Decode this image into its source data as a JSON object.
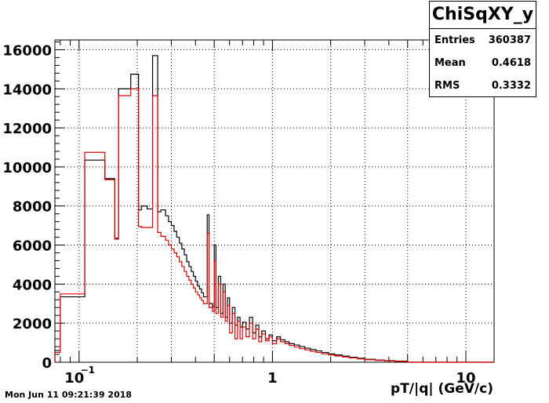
{
  "chart_data": {
    "type": "histogram",
    "title": "",
    "xlabel": "pT/|q| (GeV/c)",
    "ylabel": "",
    "x_scale": "log",
    "xlim": [
      0.075,
      14
    ],
    "ylim": [
      0,
      16500
    ],
    "grid": true,
    "x_ticks": [
      {
        "value": 0.1,
        "label": "10",
        "exponent": "−1"
      },
      {
        "value": 1,
        "label": "1",
        "exponent": ""
      },
      {
        "value": 10,
        "label": "10",
        "exponent": ""
      }
    ],
    "y_ticks": [
      0,
      2000,
      4000,
      6000,
      8000,
      10000,
      12000,
      14000,
      16000
    ],
    "series": [
      {
        "color": "#000000",
        "bins": [
          [
            0.075,
            0.08,
            600
          ],
          [
            0.08,
            0.107,
            3350
          ],
          [
            0.107,
            0.136,
            10350
          ],
          [
            0.136,
            0.153,
            9400
          ],
          [
            0.153,
            0.16,
            6350
          ],
          [
            0.16,
            0.185,
            14000
          ],
          [
            0.185,
            0.203,
            14750
          ],
          [
            0.203,
            0.21,
            7800
          ],
          [
            0.21,
            0.225,
            8000
          ],
          [
            0.225,
            0.24,
            7850
          ],
          [
            0.24,
            0.255,
            15700
          ],
          [
            0.255,
            0.265,
            7700
          ],
          [
            0.265,
            0.28,
            7800
          ],
          [
            0.28,
            0.29,
            7500
          ],
          [
            0.29,
            0.3,
            7200
          ],
          [
            0.3,
            0.31,
            7000
          ],
          [
            0.31,
            0.32,
            6700
          ],
          [
            0.32,
            0.33,
            6400
          ],
          [
            0.33,
            0.34,
            6100
          ],
          [
            0.34,
            0.35,
            5800
          ],
          [
            0.35,
            0.36,
            5500
          ],
          [
            0.36,
            0.37,
            5150
          ],
          [
            0.37,
            0.38,
            4900
          ],
          [
            0.38,
            0.39,
            4650
          ],
          [
            0.39,
            0.4,
            4400
          ],
          [
            0.4,
            0.41,
            4150
          ],
          [
            0.41,
            0.42,
            3900
          ],
          [
            0.42,
            0.43,
            3750
          ],
          [
            0.43,
            0.44,
            3550
          ],
          [
            0.44,
            0.46,
            3350
          ],
          [
            0.46,
            0.47,
            7550
          ],
          [
            0.47,
            0.49,
            3000
          ],
          [
            0.49,
            0.5,
            2850
          ],
          [
            0.5,
            0.51,
            6000
          ],
          [
            0.51,
            0.525,
            2800
          ],
          [
            0.525,
            0.54,
            4400
          ],
          [
            0.54,
            0.555,
            2500
          ],
          [
            0.555,
            0.57,
            4000
          ],
          [
            0.57,
            0.585,
            2300
          ],
          [
            0.585,
            0.6,
            3300
          ],
          [
            0.6,
            0.62,
            2000
          ],
          [
            0.62,
            0.64,
            2800
          ],
          [
            0.64,
            0.66,
            1900
          ],
          [
            0.66,
            0.68,
            2300
          ],
          [
            0.68,
            0.7,
            1800
          ],
          [
            0.7,
            0.73,
            2050
          ],
          [
            0.73,
            0.76,
            1700
          ],
          [
            0.76,
            0.79,
            2300
          ],
          [
            0.79,
            0.82,
            1500
          ],
          [
            0.82,
            0.85,
            1900
          ],
          [
            0.85,
            0.88,
            1300
          ],
          [
            0.88,
            0.92,
            1600
          ],
          [
            0.92,
            0.96,
            1200
          ],
          [
            0.96,
            1.0,
            1400
          ],
          [
            1.0,
            1.05,
            1100
          ],
          [
            1.05,
            1.1,
            1300
          ],
          [
            1.1,
            1.16,
            1150
          ],
          [
            1.16,
            1.22,
            1050
          ],
          [
            1.22,
            1.3,
            950
          ],
          [
            1.3,
            1.38,
            880
          ],
          [
            1.38,
            1.47,
            800
          ],
          [
            1.47,
            1.57,
            720
          ],
          [
            1.57,
            1.68,
            650
          ],
          [
            1.68,
            1.8,
            580
          ],
          [
            1.8,
            1.95,
            500
          ],
          [
            1.95,
            2.1,
            430
          ],
          [
            2.1,
            2.3,
            370
          ],
          [
            2.3,
            2.5,
            310
          ],
          [
            2.5,
            2.75,
            250
          ],
          [
            2.75,
            3.0,
            200
          ],
          [
            3.0,
            3.4,
            150
          ],
          [
            3.4,
            3.8,
            110
          ],
          [
            3.8,
            4.3,
            80
          ],
          [
            4.3,
            5.0,
            55
          ],
          [
            5.0,
            14,
            0
          ]
        ]
      },
      {
        "color": "#dd0000",
        "bins": [
          [
            0.075,
            0.08,
            500
          ],
          [
            0.08,
            0.107,
            3500
          ],
          [
            0.107,
            0.136,
            10750
          ],
          [
            0.136,
            0.153,
            9350
          ],
          [
            0.153,
            0.16,
            6300
          ],
          [
            0.16,
            0.185,
            13650
          ],
          [
            0.185,
            0.203,
            14000
          ],
          [
            0.203,
            0.21,
            6950
          ],
          [
            0.21,
            0.225,
            6900
          ],
          [
            0.225,
            0.24,
            6900
          ],
          [
            0.24,
            0.255,
            13650
          ],
          [
            0.255,
            0.265,
            6650
          ],
          [
            0.265,
            0.28,
            6450
          ],
          [
            0.28,
            0.29,
            6250
          ],
          [
            0.29,
            0.3,
            6000
          ],
          [
            0.3,
            0.31,
            5800
          ],
          [
            0.31,
            0.32,
            5600
          ],
          [
            0.32,
            0.33,
            5400
          ],
          [
            0.33,
            0.34,
            5150
          ],
          [
            0.34,
            0.35,
            4900
          ],
          [
            0.35,
            0.36,
            4650
          ],
          [
            0.36,
            0.37,
            4400
          ],
          [
            0.37,
            0.38,
            4200
          ],
          [
            0.38,
            0.39,
            4000
          ],
          [
            0.39,
            0.4,
            3800
          ],
          [
            0.4,
            0.41,
            3600
          ],
          [
            0.41,
            0.42,
            3450
          ],
          [
            0.42,
            0.43,
            3300
          ],
          [
            0.43,
            0.44,
            3150
          ],
          [
            0.44,
            0.46,
            3000
          ],
          [
            0.46,
            0.47,
            6600
          ],
          [
            0.47,
            0.49,
            2800
          ],
          [
            0.49,
            0.5,
            2600
          ],
          [
            0.5,
            0.51,
            5200
          ],
          [
            0.51,
            0.525,
            2500
          ],
          [
            0.525,
            0.54,
            4000
          ],
          [
            0.54,
            0.555,
            2300
          ],
          [
            0.555,
            0.57,
            3600
          ],
          [
            0.57,
            0.585,
            2100
          ],
          [
            0.585,
            0.6,
            2900
          ],
          [
            0.6,
            0.62,
            1500
          ],
          [
            0.62,
            0.64,
            2500
          ],
          [
            0.64,
            0.66,
            1200
          ],
          [
            0.66,
            0.68,
            2100
          ],
          [
            0.68,
            0.7,
            1200
          ],
          [
            0.7,
            0.73,
            1800
          ],
          [
            0.73,
            0.76,
            1300
          ],
          [
            0.76,
            0.79,
            2000
          ],
          [
            0.79,
            0.82,
            1200
          ],
          [
            0.82,
            0.85,
            1700
          ],
          [
            0.85,
            0.88,
            1050
          ],
          [
            0.88,
            0.92,
            1450
          ],
          [
            0.92,
            0.96,
            1100
          ],
          [
            0.96,
            1.0,
            1300
          ],
          [
            1.0,
            1.05,
            950
          ],
          [
            1.05,
            1.1,
            1200
          ],
          [
            1.1,
            1.16,
            1050
          ],
          [
            1.16,
            1.22,
            950
          ],
          [
            1.22,
            1.3,
            860
          ],
          [
            1.3,
            1.38,
            780
          ],
          [
            1.38,
            1.47,
            700
          ],
          [
            1.47,
            1.57,
            630
          ],
          [
            1.57,
            1.68,
            560
          ],
          [
            1.68,
            1.8,
            500
          ],
          [
            1.8,
            1.95,
            430
          ],
          [
            1.95,
            2.1,
            370
          ],
          [
            2.1,
            2.3,
            320
          ],
          [
            2.3,
            2.5,
            270
          ],
          [
            2.5,
            2.75,
            220
          ],
          [
            2.75,
            3.0,
            170
          ],
          [
            3.0,
            3.4,
            130
          ],
          [
            3.4,
            3.8,
            95
          ],
          [
            3.8,
            4.3,
            70
          ],
          [
            4.3,
            5.0,
            45
          ],
          [
            5.0,
            14,
            0
          ]
        ]
      }
    ]
  },
  "stats": {
    "title": "ChiSqXY_y",
    "rows": [
      {
        "label": "Entries",
        "value": "360387"
      },
      {
        "label": "Mean",
        "value": "0.4618"
      },
      {
        "label": "RMS",
        "value": "0.3332"
      }
    ]
  },
  "timestamp": "Mon Jun 11 09:21:39 2018"
}
